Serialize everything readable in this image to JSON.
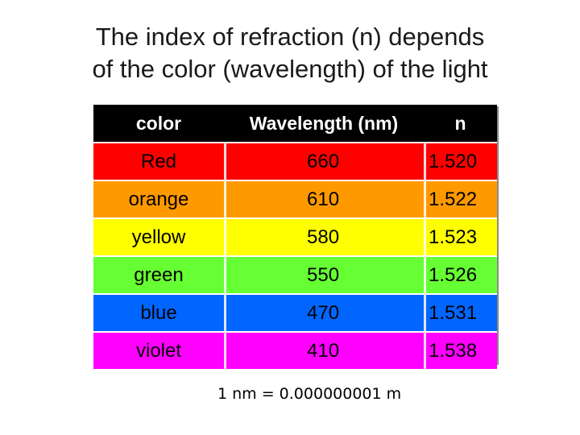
{
  "title": {
    "line1": "The index of refraction (n) depends",
    "line2": "of the color (wavelength) of the light"
  },
  "table": {
    "headers": [
      "color",
      "Wavelength (nm)",
      "n"
    ],
    "rows": [
      {
        "color": "Red",
        "wavelength": "660",
        "n": "1.520",
        "bg": "#ff0000"
      },
      {
        "color": "orange",
        "wavelength": "610",
        "n": "1.522",
        "bg": "#ff9900"
      },
      {
        "color": "yellow",
        "wavelength": "580",
        "n": "1.523",
        "bg": "#ffff00"
      },
      {
        "color": "green",
        "wavelength": "550",
        "n": "1.526",
        "bg": "#66ff33"
      },
      {
        "color": "blue",
        "wavelength": "470",
        "n": "1.531",
        "bg": "#0066ff"
      },
      {
        "color": "violet",
        "wavelength": "410",
        "n": "1.538",
        "bg": "#ff00ff"
      }
    ]
  },
  "footnote": "1 nm = 0.000000001 m"
}
